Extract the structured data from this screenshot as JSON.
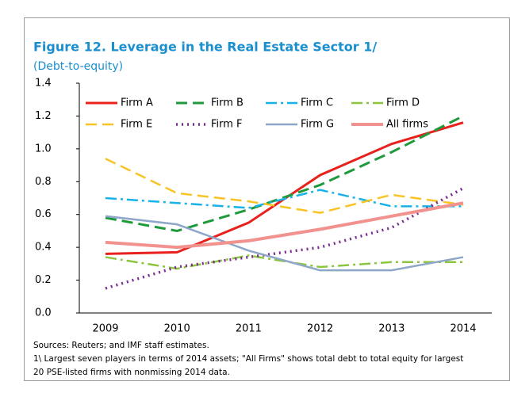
{
  "chart_data": {
    "type": "line",
    "title": "Figure 12. Leverage in the Real Estate Sector 1/",
    "subtitle": "(Debt-to-equity)",
    "categories": [
      "2009",
      "2010",
      "2011",
      "2012",
      "2013",
      "2014"
    ],
    "ylim": [
      0,
      1.4
    ],
    "yticks": [
      {
        "value": 0,
        "label": "0.0"
      },
      0.2,
      0.4,
      0.6,
      0.8,
      {
        "value": 1,
        "label": "1.0"
      },
      1.2,
      1.4
    ],
    "series": [
      {
        "name": "Firm A",
        "color": "#e8211c",
        "dash": "solid",
        "width": 3,
        "values": [
          0.36,
          0.37,
          0.55,
          0.84,
          1.03,
          1.16
        ]
      },
      {
        "name": "Firm B",
        "color": "#1e9a3c",
        "dash": "dashed",
        "width": 3,
        "values": [
          0.58,
          0.5,
          0.63,
          0.78,
          0.98,
          1.2
        ]
      },
      {
        "name": "Firm C",
        "color": "#17b3e8",
        "dash": "dashdot",
        "width": 2.5,
        "values": [
          0.7,
          0.67,
          0.64,
          0.75,
          0.65,
          0.65
        ]
      },
      {
        "name": "Firm D",
        "color": "#8cc63f",
        "dash": "dashdot",
        "width": 2.5,
        "values": [
          0.34,
          0.27,
          0.35,
          0.28,
          0.31,
          0.31
        ]
      },
      {
        "name": "Firm E",
        "color": "#f7c325",
        "dash": "dashed",
        "width": 2.5,
        "values": [
          0.94,
          0.73,
          0.68,
          0.61,
          0.72,
          0.66
        ]
      },
      {
        "name": "Firm F",
        "color": "#7a2b8f",
        "dash": "dotted",
        "width": 3.5,
        "values": [
          0.15,
          0.28,
          0.34,
          0.4,
          0.52,
          0.76
        ]
      },
      {
        "name": "Firm G",
        "color": "#8ea6c8",
        "dash": "solid",
        "width": 2.5,
        "values": [
          0.59,
          0.54,
          0.38,
          0.26,
          0.26,
          0.34
        ]
      },
      {
        "name": "All firms",
        "color": "#f2928e",
        "dash": "solid",
        "width": 4,
        "values": [
          0.43,
          0.4,
          0.44,
          0.51,
          0.59,
          0.67
        ]
      }
    ],
    "notes": [
      "Sources: Reuters; and IMF staff estimates.",
      "1\\ Largest seven players in terms of 2014 assets; \"All Firms\" shows total debt to total equity for largest",
      "20 PSE-listed firms with nonmissing 2014 data."
    ]
  }
}
